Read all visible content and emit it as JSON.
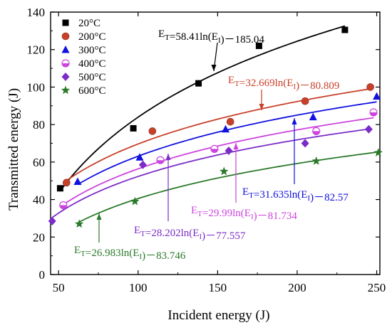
{
  "chart_data": {
    "type": "scatter",
    "xlabel": "Incident energy (J)",
    "ylabel": "Transmitted energy (J)",
    "xlim": [
      45,
      252
    ],
    "ylim": [
      0,
      140
    ],
    "xticks": [
      50,
      100,
      150,
      200,
      250
    ],
    "yticks": [
      0,
      20,
      40,
      60,
      80,
      100,
      120,
      140
    ],
    "legend_position": "top-left",
    "series": [
      {
        "name": "20°C",
        "color": "#000000",
        "marker": "square",
        "x": [
          51,
          97,
          138,
          176,
          230
        ],
        "y": [
          46,
          78,
          102,
          122,
          130.5
        ],
        "fit": {
          "a": 58.41,
          "b": -185.04,
          "label": "E_T=58.41ln(E_I)－185.04"
        }
      },
      {
        "name": "200°C",
        "color": "#c8402a",
        "marker": "circle",
        "x": [
          55,
          109,
          158,
          205,
          246
        ],
        "y": [
          49,
          76.5,
          81.5,
          92.5,
          100
        ],
        "fit": {
          "a": 32.669,
          "b": -80.809,
          "label": "E_T=32.669ln(E_I)－80.809"
        }
      },
      {
        "name": "300°C",
        "color": "#1010e0",
        "marker": "triangle",
        "x": [
          62,
          101,
          155,
          210,
          250
        ],
        "y": [
          49.5,
          62.5,
          77.5,
          84,
          95
        ],
        "fit": {
          "a": 31.635,
          "b": -82.57,
          "label": "E_T=31.635ln(E_I)－82.57"
        }
      },
      {
        "name": "400°C",
        "color": "#cc44dd",
        "marker": "half-circle",
        "x": [
          53,
          114,
          148,
          212,
          248
        ],
        "y": [
          37,
          61,
          67,
          76.5,
          86.5
        ],
        "fit": {
          "a": 29.99,
          "b": -81.734,
          "label": "E_T=29.99ln(E_I)－81.734"
        }
      },
      {
        "name": "500°C",
        "color": "#7b2cc8",
        "marker": "diamond",
        "x": [
          46,
          103,
          157,
          205,
          245
        ],
        "y": [
          28.5,
          58.5,
          66,
          70,
          77.5
        ],
        "fit": {
          "a": 28.202,
          "b": -77.557,
          "label": "E_T=28.202ln(E_I)－77.557"
        }
      },
      {
        "name": "600°C",
        "color": "#2a7a2a",
        "marker": "star",
        "x": [
          63,
          98,
          154,
          212,
          251
        ],
        "y": [
          27,
          39,
          55,
          60.5,
          65
        ],
        "fit": {
          "a": 26.983,
          "b": -83.746,
          "label": "E_T=26.983ln(E_I)－83.746"
        }
      }
    ]
  }
}
